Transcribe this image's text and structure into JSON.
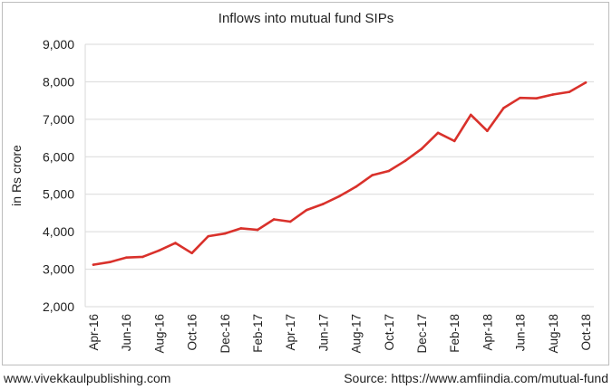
{
  "chart_data": {
    "type": "line",
    "title": "Inflows into mutual fund SIPs",
    "ylabel": "in Rs crore",
    "xlabel": "",
    "ylim": [
      2000,
      9000
    ],
    "yticks": [
      "2,000",
      "3,000",
      "4,000",
      "5,000",
      "6,000",
      "7,000",
      "8,000",
      "9,000"
    ],
    "ytick_values": [
      2000,
      3000,
      4000,
      5000,
      6000,
      7000,
      8000,
      9000
    ],
    "grid": "horizontal",
    "color": "#d9312b",
    "x": [
      "Apr-16",
      "May-16",
      "Jun-16",
      "Jul-16",
      "Aug-16",
      "Sep-16",
      "Oct-16",
      "Nov-16",
      "Dec-16",
      "Jan-17",
      "Feb-17",
      "Mar-17",
      "Apr-17",
      "May-17",
      "Jun-17",
      "Jul-17",
      "Aug-17",
      "Sep-17",
      "Oct-17",
      "Nov-17",
      "Dec-17",
      "Jan-18",
      "Feb-18",
      "Mar-18",
      "Apr-18",
      "May-18",
      "Jun-18",
      "Jul-18",
      "Aug-18",
      "Sep-18",
      "Oct-18"
    ],
    "x_tick_labels": [
      "Apr-16",
      "Jun-16",
      "Aug-16",
      "Oct-16",
      "Dec-16",
      "Feb-17",
      "Apr-17",
      "Jun-17",
      "Aug-17",
      "Oct-17",
      "Dec-17",
      "Feb-18",
      "Apr-18",
      "Jun-18",
      "Aug-18",
      "Oct-18"
    ],
    "values": [
      3120,
      3190,
      3310,
      3330,
      3500,
      3700,
      3430,
      3880,
      3950,
      4090,
      4050,
      4330,
      4270,
      4580,
      4740,
      4950,
      5200,
      5510,
      5620,
      5890,
      6210,
      6640,
      6420,
      7120,
      6690,
      7300,
      7570,
      7560,
      7660,
      7730,
      7980
    ]
  },
  "footer": {
    "left": "www.vivekkaulpublishing.com",
    "right": "Source: https://www.amfiindia.com/mutual-fund"
  }
}
